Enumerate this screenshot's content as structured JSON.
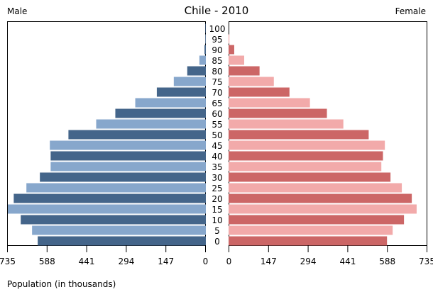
{
  "chart_data": {
    "type": "bar",
    "subtype": "population-pyramid",
    "title": "Chile - 2010",
    "left_label": "Male",
    "right_label": "Female",
    "xlabel": "Population (in thousands)",
    "xlim": [
      0,
      735
    ],
    "x_ticks": [
      "735",
      "588",
      "441",
      "294",
      "147",
      "0"
    ],
    "x_ticks_right": [
      "0",
      "147",
      "294",
      "441",
      "588",
      "735"
    ],
    "categories": [
      "0",
      "5",
      "10",
      "15",
      "20",
      "25",
      "30",
      "35",
      "40",
      "45",
      "50",
      "55",
      "60",
      "65",
      "70",
      "75",
      "80",
      "85",
      "90",
      "95",
      "100"
    ],
    "series": [
      {
        "name": "Male",
        "colors": [
          "#44658a",
          "#87a7cc"
        ],
        "values": [
          624,
          645,
          687,
          735,
          713,
          666,
          616,
          576,
          576,
          579,
          510,
          407,
          336,
          262,
          182,
          119,
          69,
          24,
          5,
          2,
          2
        ]
      },
      {
        "name": "Female",
        "colors": [
          "#cc6666",
          "#f2aaaa"
        ],
        "values": [
          588,
          609,
          651,
          698,
          680,
          643,
          601,
          567,
          573,
          580,
          520,
          426,
          365,
          302,
          226,
          168,
          115,
          58,
          21,
          3,
          0
        ]
      }
    ]
  }
}
